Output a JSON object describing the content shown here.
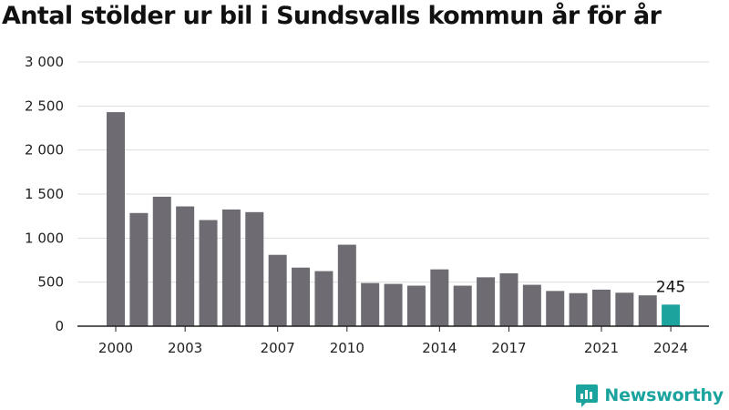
{
  "chart_data": {
    "type": "bar",
    "title": "Antal stölder ur bil i Sundsvalls kommun år för år",
    "categories": [
      "2000",
      "2001",
      "2002",
      "2003",
      "2004",
      "2005",
      "2006",
      "2007",
      "2008",
      "2009",
      "2010",
      "2011",
      "2012",
      "2013",
      "2014",
      "2015",
      "2016",
      "2017",
      "2018",
      "2019",
      "2020",
      "2021",
      "2022",
      "2023",
      "2024"
    ],
    "values": [
      2430,
      1285,
      1470,
      1360,
      1205,
      1325,
      1295,
      810,
      665,
      625,
      925,
      490,
      480,
      460,
      645,
      460,
      555,
      600,
      470,
      400,
      375,
      415,
      380,
      350,
      245
    ],
    "x_tick_labels": [
      "2000",
      "2003",
      "2007",
      "2010",
      "2014",
      "2017",
      "2021",
      "2024"
    ],
    "y_tick_labels": [
      "0",
      "500",
      "1 000",
      "1 500",
      "2 000",
      "2 500",
      "3 000"
    ],
    "y_ticks": [
      0,
      500,
      1000,
      1500,
      2000,
      2500,
      3000
    ],
    "ylim": [
      0,
      3000
    ],
    "annotation": {
      "category": "2024",
      "text": "245"
    },
    "grid": true,
    "colors": {
      "bar": "#6e6c72",
      "highlight": "#1ba49e",
      "grid": "#dddddd",
      "axis": "#222222"
    }
  },
  "brand": {
    "name": "Newsworthy",
    "icon": "newsworthy-logo-icon",
    "color": "#1ba49e"
  }
}
